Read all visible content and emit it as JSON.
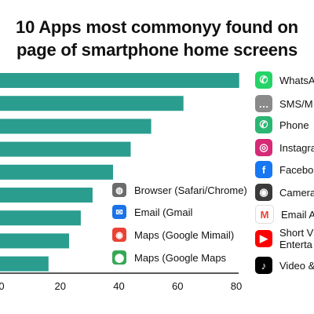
{
  "title_line1": "10 Apps most commonyy found on",
  "title_line2": "page of smartphone home screens",
  "colors": {
    "bar": "#2a9d8f",
    "axis": "#222222"
  },
  "chart_data": {
    "type": "bar",
    "orientation": "horizontal",
    "xlim": [
      0,
      80
    ],
    "xticks": [
      "0",
      "20",
      "40",
      "60",
      "80"
    ],
    "values": [
      81,
      62,
      51,
      44,
      38,
      31,
      27,
      23,
      16
    ],
    "legend_placement": "right"
  },
  "apps": [
    {
      "label": "WhatsA",
      "icon": "whatsapp-icon",
      "color": "#25d366",
      "glyph": "✆"
    },
    {
      "label": "SMS/M",
      "icon": "sms-icon",
      "color": "#8a8a8a",
      "glyph": "…"
    },
    {
      "label": "Phone",
      "icon": "phone-icon",
      "color": "#2bb673",
      "glyph": "✆"
    },
    {
      "label": "Instagra",
      "icon": "instagram-icon",
      "color": "#d62976",
      "glyph": "◎"
    },
    {
      "label": "Facebo",
      "icon": "facebook-icon",
      "color": "#1877f2",
      "glyph": "f"
    },
    {
      "label": "Camera",
      "icon": "camera-icon",
      "color": "#3a3a3a",
      "glyph": "◉"
    },
    {
      "label": "Email A",
      "icon": "gmail-icon",
      "color": "#ffffff",
      "glyph": "M"
    },
    {
      "label": "Short V",
      "label2": "Enterta",
      "icon": "youtube-icon",
      "color": "#ff0000",
      "glyph": "▶"
    },
    {
      "label": "Video &",
      "icon": "tiktok-icon",
      "color": "#000000",
      "glyph": "♪"
    }
  ],
  "mid_labels": [
    {
      "label": "Browser  (Safari/Chrome)",
      "icon": "chrome-icon",
      "color": "#6b6b6b",
      "glyph": "◍"
    },
    {
      "label": "Email (Gmail",
      "icon": "email-icon",
      "color": "#1a73e8",
      "glyph": "✉"
    },
    {
      "label": "Maps (Google Mimail)",
      "icon": "maps-icon",
      "color": "#e94235",
      "glyph": "◉"
    },
    {
      "label": "Maps (Google Maps",
      "icon": "google-maps-icon",
      "color": "#34a853",
      "glyph": "⬤"
    }
  ]
}
